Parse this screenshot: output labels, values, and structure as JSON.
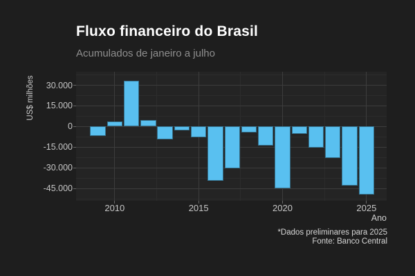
{
  "header": {
    "title": "Fluxo financeiro do Brasil",
    "subtitle": "Acumulados de janeiro a julho"
  },
  "footer": {
    "caption_line1": "*Dados preliminares para 2025",
    "caption_line2": "Fonte: Banco Central"
  },
  "chart_data": {
    "type": "bar",
    "title": "Fluxo financeiro do Brasil",
    "subtitle": "Acumulados de janeiro a julho",
    "xlabel": "Ano",
    "ylabel": "US$ milhões",
    "caption": [
      "*Dados preliminares para 2025",
      "Fonte: Banco Central"
    ],
    "x": [
      2009,
      2010,
      2011,
      2012,
      2013,
      2014,
      2015,
      2016,
      2017,
      2018,
      2019,
      2020,
      2021,
      2022,
      2023,
      2024,
      2025
    ],
    "values": [
      -6900,
      3500,
      33100,
      4500,
      -9200,
      -3000,
      -8000,
      -39600,
      -30400,
      -4500,
      -13700,
      -44900,
      -5500,
      -15400,
      -23100,
      -43000,
      -49700
    ],
    "units": "US$ milhões",
    "bar_color": "#59c0f0",
    "bar_border_color": "#35718d",
    "xlim": [
      2007.7,
      2026.2
    ],
    "ylim": [
      -54000,
      39800
    ],
    "x_major_ticks": [
      2010,
      2015,
      2020,
      2025
    ],
    "x_minor_ticks": [
      2012.5,
      2017.5,
      2022.5
    ],
    "x_major_labels": [
      "2010",
      "2015",
      "2020",
      "2025"
    ],
    "y_major_ticks": [
      30000,
      15000,
      0,
      -15000,
      -30000,
      -45000
    ],
    "y_major_labels": [
      "30.000",
      "15.000",
      "0",
      "-15.000",
      "-30.000",
      "-45.000"
    ],
    "y_minor_ticks": [
      37500,
      22500,
      7500,
      -7500,
      -22500,
      -37500,
      -52500
    ],
    "grid": true,
    "legend": false,
    "theme": {
      "background": "#1e1e1e",
      "panel_background": "#242424",
      "grid_major": "#3d3d3d",
      "grid_minor": "#2c2c2c",
      "title_color": "#ffffff",
      "subtitle_color": "#8f8f8f",
      "tick_label_color": "#c6c6c6",
      "caption_color": "#d6d6d6"
    }
  }
}
